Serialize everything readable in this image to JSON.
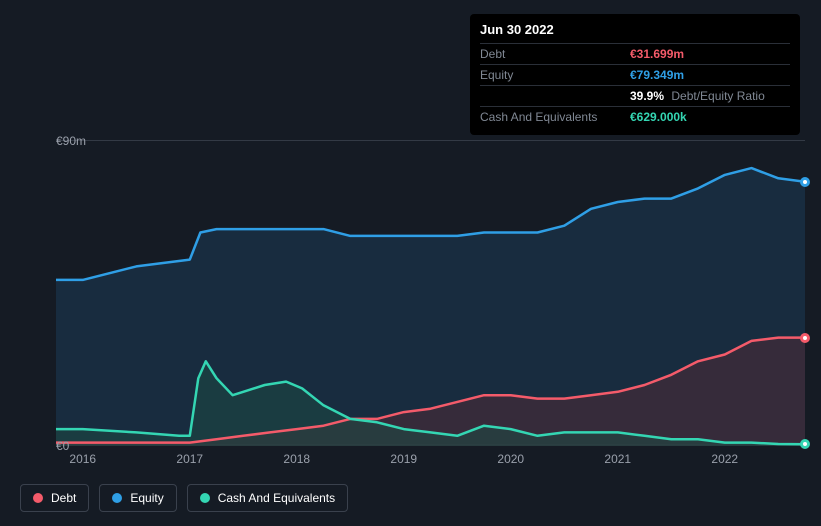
{
  "tooltip": {
    "date": "Jun 30 2022",
    "rows": [
      {
        "label": "Debt",
        "value": "€31.699m",
        "color": "#f45b6a",
        "extra": ""
      },
      {
        "label": "Equity",
        "value": "€79.349m",
        "color": "#2f9fe6",
        "extra": ""
      },
      {
        "label": "",
        "value": "39.9%",
        "color": "#ffffff",
        "extra": "Debt/Equity Ratio"
      },
      {
        "label": "Cash And Equivalents",
        "value": "€629.000k",
        "color": "#34d6b3",
        "extra": ""
      }
    ]
  },
  "chart": {
    "type": "area",
    "background": "#151b24",
    "grid_color": "#333a45",
    "ylim": [
      0,
      90
    ],
    "y_ticks": [
      {
        "v": 0,
        "label": "€0"
      },
      {
        "v": 90,
        "label": "€90m"
      }
    ],
    "x_labels": [
      "2016",
      "2017",
      "2018",
      "2019",
      "2020",
      "2021",
      "2022"
    ],
    "x_range": [
      2015.75,
      2022.75
    ],
    "series": {
      "equity": {
        "name": "Equity",
        "stroke": "#2f9fe6",
        "fill": "#1c3a55",
        "fill_opacity": 0.55,
        "data": [
          [
            2015.75,
            49
          ],
          [
            2016.0,
            49
          ],
          [
            2016.25,
            51
          ],
          [
            2016.5,
            53
          ],
          [
            2016.75,
            54
          ],
          [
            2017.0,
            55
          ],
          [
            2017.1,
            63
          ],
          [
            2017.25,
            64
          ],
          [
            2017.5,
            64
          ],
          [
            2017.75,
            64
          ],
          [
            2018.0,
            64
          ],
          [
            2018.25,
            64
          ],
          [
            2018.5,
            62
          ],
          [
            2018.75,
            62
          ],
          [
            2019.0,
            62
          ],
          [
            2019.25,
            62
          ],
          [
            2019.5,
            62
          ],
          [
            2019.75,
            63
          ],
          [
            2020.0,
            63
          ],
          [
            2020.25,
            63
          ],
          [
            2020.5,
            65
          ],
          [
            2020.75,
            70
          ],
          [
            2021.0,
            72
          ],
          [
            2021.25,
            73
          ],
          [
            2021.5,
            73
          ],
          [
            2021.75,
            76
          ],
          [
            2022.0,
            80
          ],
          [
            2022.25,
            82
          ],
          [
            2022.5,
            79
          ],
          [
            2022.75,
            78
          ]
        ]
      },
      "debt": {
        "name": "Debt",
        "stroke": "#f45b6a",
        "fill": "#5a2a35",
        "fill_opacity": 0.45,
        "data": [
          [
            2015.75,
            1
          ],
          [
            2016.0,
            1
          ],
          [
            2016.5,
            1
          ],
          [
            2017.0,
            1
          ],
          [
            2017.25,
            2
          ],
          [
            2017.5,
            3
          ],
          [
            2017.75,
            4
          ],
          [
            2018.0,
            5
          ],
          [
            2018.25,
            6
          ],
          [
            2018.5,
            8
          ],
          [
            2018.75,
            8
          ],
          [
            2019.0,
            10
          ],
          [
            2019.25,
            11
          ],
          [
            2019.5,
            13
          ],
          [
            2019.75,
            15
          ],
          [
            2020.0,
            15
          ],
          [
            2020.25,
            14
          ],
          [
            2020.5,
            14
          ],
          [
            2020.75,
            15
          ],
          [
            2021.0,
            16
          ],
          [
            2021.25,
            18
          ],
          [
            2021.5,
            21
          ],
          [
            2021.75,
            25
          ],
          [
            2022.0,
            27
          ],
          [
            2022.25,
            31
          ],
          [
            2022.5,
            32
          ],
          [
            2022.75,
            32
          ]
        ]
      },
      "cash": {
        "name": "Cash And Equivalents",
        "stroke": "#34d6b3",
        "fill": "#1d4a44",
        "fill_opacity": 0.55,
        "data": [
          [
            2015.75,
            5
          ],
          [
            2016.0,
            5
          ],
          [
            2016.5,
            4
          ],
          [
            2016.9,
            3
          ],
          [
            2017.0,
            3
          ],
          [
            2017.08,
            20
          ],
          [
            2017.15,
            25
          ],
          [
            2017.25,
            20
          ],
          [
            2017.4,
            15
          ],
          [
            2017.5,
            16
          ],
          [
            2017.7,
            18
          ],
          [
            2017.9,
            19
          ],
          [
            2018.05,
            17
          ],
          [
            2018.25,
            12
          ],
          [
            2018.5,
            8
          ],
          [
            2018.75,
            7
          ],
          [
            2019.0,
            5
          ],
          [
            2019.25,
            4
          ],
          [
            2019.5,
            3
          ],
          [
            2019.75,
            6
          ],
          [
            2020.0,
            5
          ],
          [
            2020.25,
            3
          ],
          [
            2020.5,
            4
          ],
          [
            2020.75,
            4
          ],
          [
            2021.0,
            4
          ],
          [
            2021.25,
            3
          ],
          [
            2021.5,
            2
          ],
          [
            2021.75,
            2
          ],
          [
            2022.0,
            1
          ],
          [
            2022.25,
            1
          ],
          [
            2022.5,
            0.6
          ],
          [
            2022.75,
            0.5
          ]
        ]
      }
    },
    "markers": [
      {
        "x": 2022.75,
        "y": 78,
        "color": "#2f9fe6"
      },
      {
        "x": 2022.75,
        "y": 32,
        "color": "#f45b6a"
      },
      {
        "x": 2022.75,
        "y": 0.5,
        "color": "#34d6b3"
      }
    ]
  },
  "legend": [
    {
      "label": "Debt",
      "color": "#f45b6a"
    },
    {
      "label": "Equity",
      "color": "#2f9fe6"
    },
    {
      "label": "Cash And Equivalents",
      "color": "#34d6b3"
    }
  ]
}
